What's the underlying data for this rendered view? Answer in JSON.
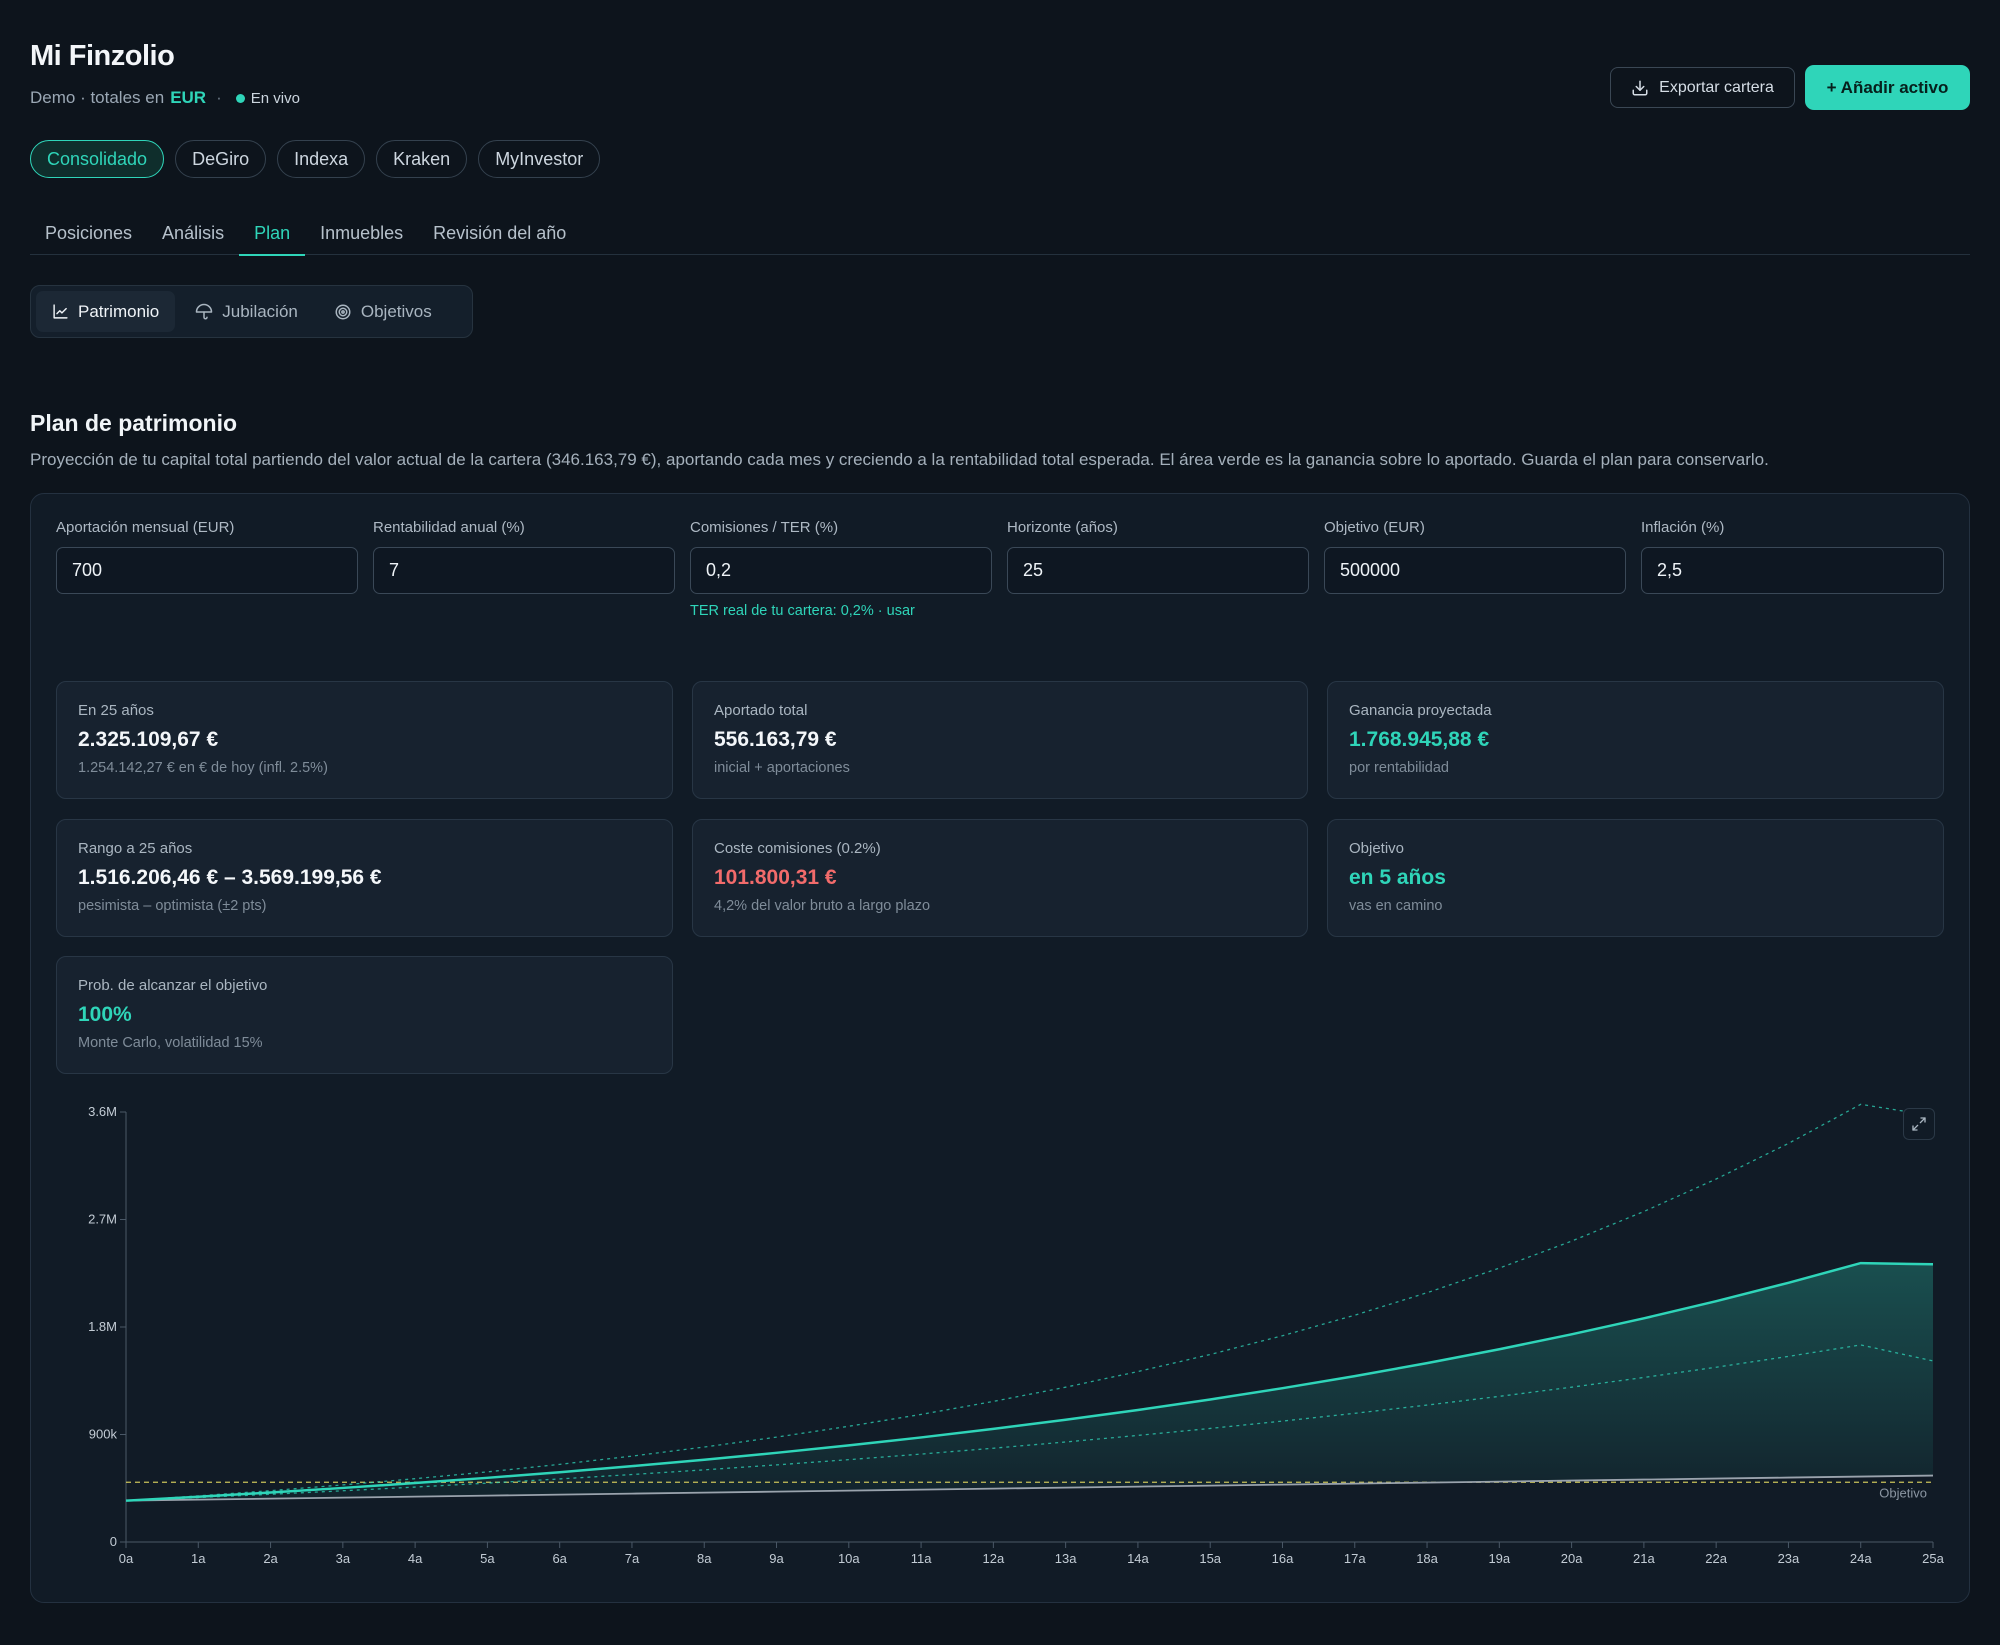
{
  "app": {
    "title": "Mi Finzolio",
    "subtitle_prefix": "Demo · totales en",
    "currency": "EUR",
    "separator": "·",
    "live_label": "En vivo",
    "export_label": "Exportar cartera",
    "add_label": "+ Añadir activo"
  },
  "brokers": [
    "Consolidado",
    "DeGiro",
    "Indexa",
    "Kraken",
    "MyInvestor"
  ],
  "tabs": [
    "Posiciones",
    "Análisis",
    "Plan",
    "Inmuebles",
    "Revisión del año"
  ],
  "active_tab": "Plan",
  "subtabs": [
    {
      "label": "Patrimonio",
      "icon": "chart-line-icon"
    },
    {
      "label": "Jubilación",
      "icon": "umbrella-icon"
    },
    {
      "label": "Objetivos",
      "icon": "target-icon"
    }
  ],
  "plan": {
    "title": "Plan de patrimonio",
    "description": "Proyección de tu capital total partiendo del valor actual de la cartera (346.163,79 €), aportando cada mes y creciendo a la rentabilidad total esperada. El área verde es la ganancia sobre lo aportado. Guarda el plan para conservarlo."
  },
  "inputs": [
    {
      "label": "Aportación mensual (EUR)",
      "value": "700"
    },
    {
      "label": "Rentabilidad anual (%)",
      "value": "7"
    },
    {
      "label": "Comisiones / TER (%)",
      "value": "0,2"
    },
    {
      "label": "Horizonte (años)",
      "value": "25"
    },
    {
      "label": "Objetivo (EUR)",
      "value": "500000"
    },
    {
      "label": "Inflación (%)",
      "value": "2,5"
    }
  ],
  "ter_hint": "TER real de tu cartera: 0,2% · usar",
  "cards": [
    {
      "label": "En 25 años",
      "value": "2.325.109,67 €",
      "sub": "1.254.142,27 € en € de hoy (infl. 2.5%)",
      "tone": "white"
    },
    {
      "label": "Aportado total",
      "value": "556.163,79 €",
      "sub": "inicial + aportaciones",
      "tone": "white"
    },
    {
      "label": "Ganancia proyectada",
      "value": "1.768.945,88 €",
      "sub": "por rentabilidad",
      "tone": "green"
    },
    {
      "label": "Rango a 25 años",
      "value": "1.516.206,46 € – 3.569.199,56 €",
      "sub": "pesimista – optimista (±2 pts)",
      "tone": "white"
    },
    {
      "label": "Coste comisiones (0.2%)",
      "value": "101.800,31 €",
      "sub": "4,2% del valor bruto a largo plazo",
      "tone": "red"
    },
    {
      "label": "Objetivo",
      "value": "en 5 años",
      "sub": "vas en camino",
      "tone": "green"
    },
    {
      "label": "Prob. de alcanzar el objetivo",
      "value": "100%",
      "sub": "Monte Carlo, volatilidad 15%",
      "tone": "green"
    }
  ],
  "colors": {
    "accent": "#2fd5b9",
    "background": "#0d141c",
    "panel": "#111b26",
    "negative": "#f26b6b",
    "target_line": "#c9c25a",
    "contributed_line": "#9aa3ad"
  },
  "chart_data": {
    "type": "line",
    "x": [
      "0a",
      "1a",
      "2a",
      "3a",
      "4a",
      "5a",
      "6a",
      "7a",
      "8a",
      "9a",
      "10a",
      "11a",
      "12a",
      "13a",
      "14a",
      "15a",
      "16a",
      "17a",
      "18a",
      "19a",
      "20a",
      "21a",
      "22a",
      "23a",
      "24a",
      "25a"
    ],
    "y_ticks": [
      "0",
      "900k",
      "1.8M",
      "2.7M",
      "3.6M"
    ],
    "ylim": [
      0,
      3600000
    ],
    "target_label": "Objetivo",
    "target_value": 500000,
    "series": [
      {
        "role": "projected",
        "values": [
          346164,
          379000,
          414500,
          452600,
          493500,
          537400,
          584400,
          634800,
          688800,
          746700,
          808800,
          875400,
          946800,
          1023300,
          1105400,
          1193400,
          1287800,
          1389000,
          1497500,
          1613900,
          1738700,
          1872500,
          2016000,
          2169900,
          2335000,
          2325110
        ]
      },
      {
        "role": "optimistic",
        "values": [
          346164,
          386000,
          430000,
          478000,
          530000,
          587000,
          650000,
          719000,
          795000,
          878000,
          969000,
          1068000,
          1177000,
          1296000,
          1427000,
          1570000,
          1727000,
          1899000,
          2087000,
          2293000,
          2519000,
          2767000,
          3039000,
          3337000,
          3664000,
          3569200
        ]
      },
      {
        "role": "pessimistic",
        "values": [
          346164,
          372000,
          399500,
          428800,
          460000,
          493000,
          528000,
          565000,
          604000,
          645500,
          689500,
          736000,
          785200,
          837300,
          892400,
          950700,
          1012300,
          1077500,
          1146400,
          1219200,
          1296200,
          1377500,
          1463300,
          1554000,
          1649700,
          1516206
        ]
      },
      {
        "role": "contributed",
        "values": [
          346164,
          354564,
          362964,
          371364,
          379764,
          388164,
          396564,
          404964,
          413364,
          421764,
          430164,
          438564,
          446964,
          455364,
          463764,
          472164,
          480564,
          488964,
          497364,
          505764,
          514164,
          522564,
          530964,
          539364,
          547764,
          556164
        ]
      }
    ]
  }
}
